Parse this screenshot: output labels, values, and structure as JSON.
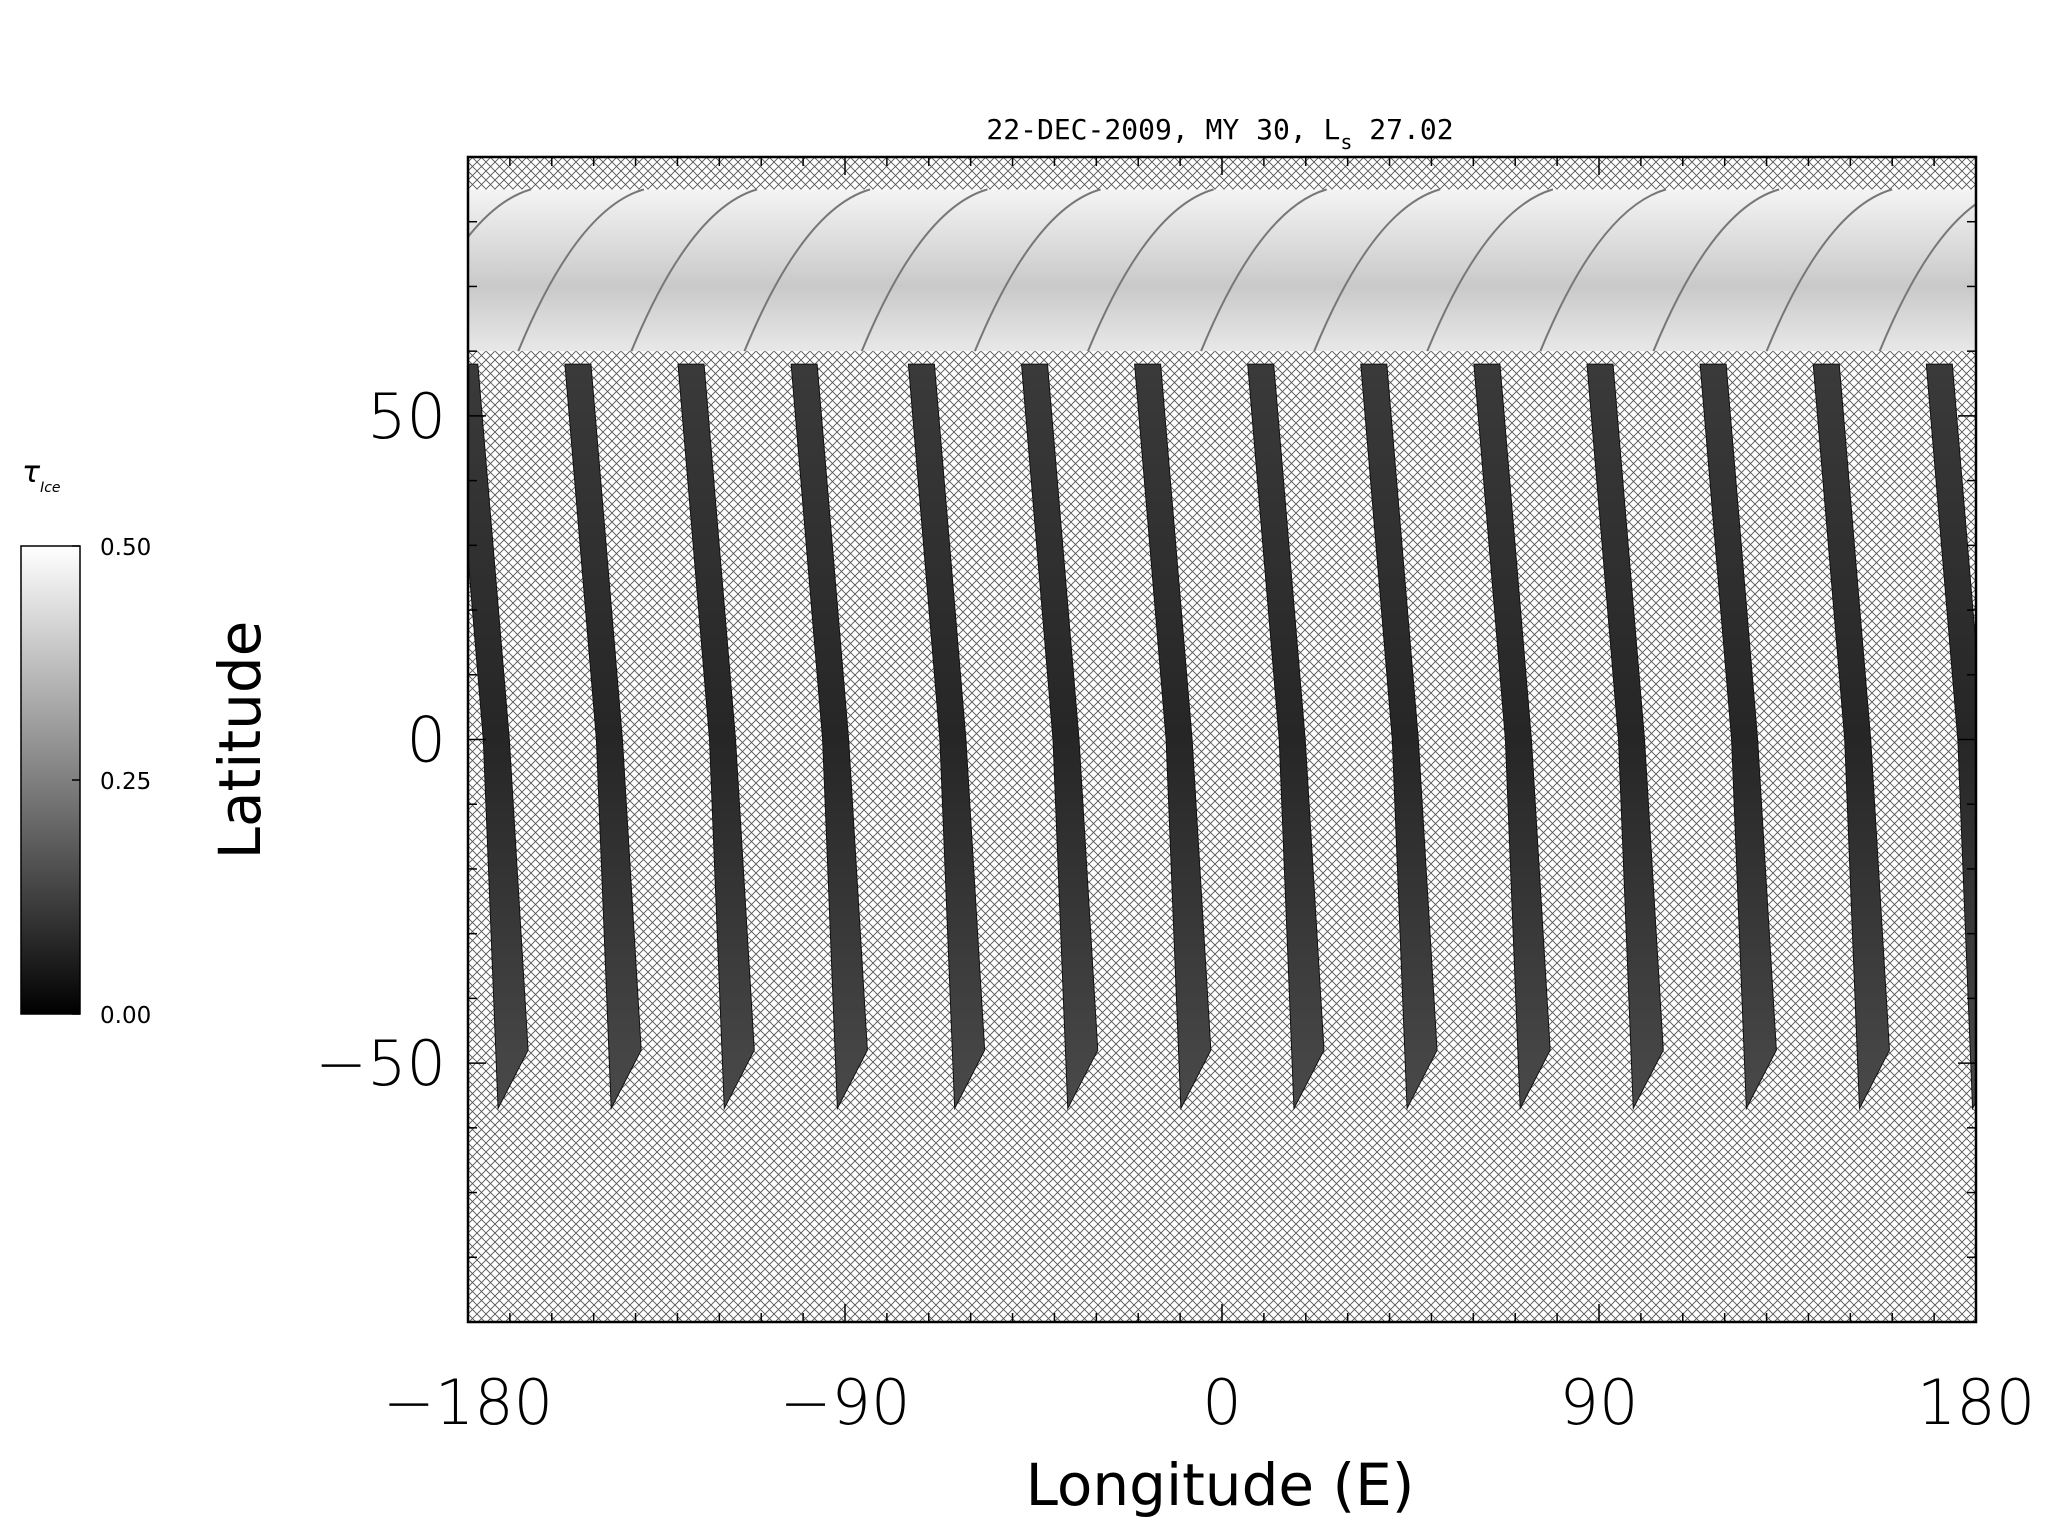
{
  "chart_data": {
    "type": "heatmap",
    "title": "22-DEC-2009, MY 30,  L",
    "title_sub": "s",
    "title_tail": " 27.02",
    "xlabel": "Longitude (E)",
    "ylabel": "Latitude",
    "xlim": [
      -180,
      180
    ],
    "ylim": [
      -90,
      90
    ],
    "xticks": [
      -180,
      -90,
      0,
      90,
      180
    ],
    "xtick_labels": [
      "−180",
      "−90",
      "0",
      "90",
      "180"
    ],
    "yticks": [
      -50,
      0,
      50
    ],
    "ytick_labels": [
      "−50",
      "0",
      "50"
    ],
    "x_minor_step": 10,
    "y_minor_step": 10,
    "missing_data_pattern": "cross-hatch",
    "colormap": "grayscale",
    "colorbar": {
      "label": "τ",
      "label_sub": "Ice",
      "ticks": [
        0.5,
        0.25,
        0.0
      ],
      "tick_labels": [
        "0.50",
        "0.25",
        "0.00"
      ],
      "range": [
        0.0,
        0.5
      ]
    },
    "swath_longitudes_at_equator": [
      -173,
      -146,
      -119,
      -92,
      -64,
      -37,
      -10,
      17,
      44,
      71,
      98,
      125,
      152,
      179
    ],
    "polar_cap_coverage": {
      "lat_min": 60,
      "lat_max": 85
    }
  }
}
